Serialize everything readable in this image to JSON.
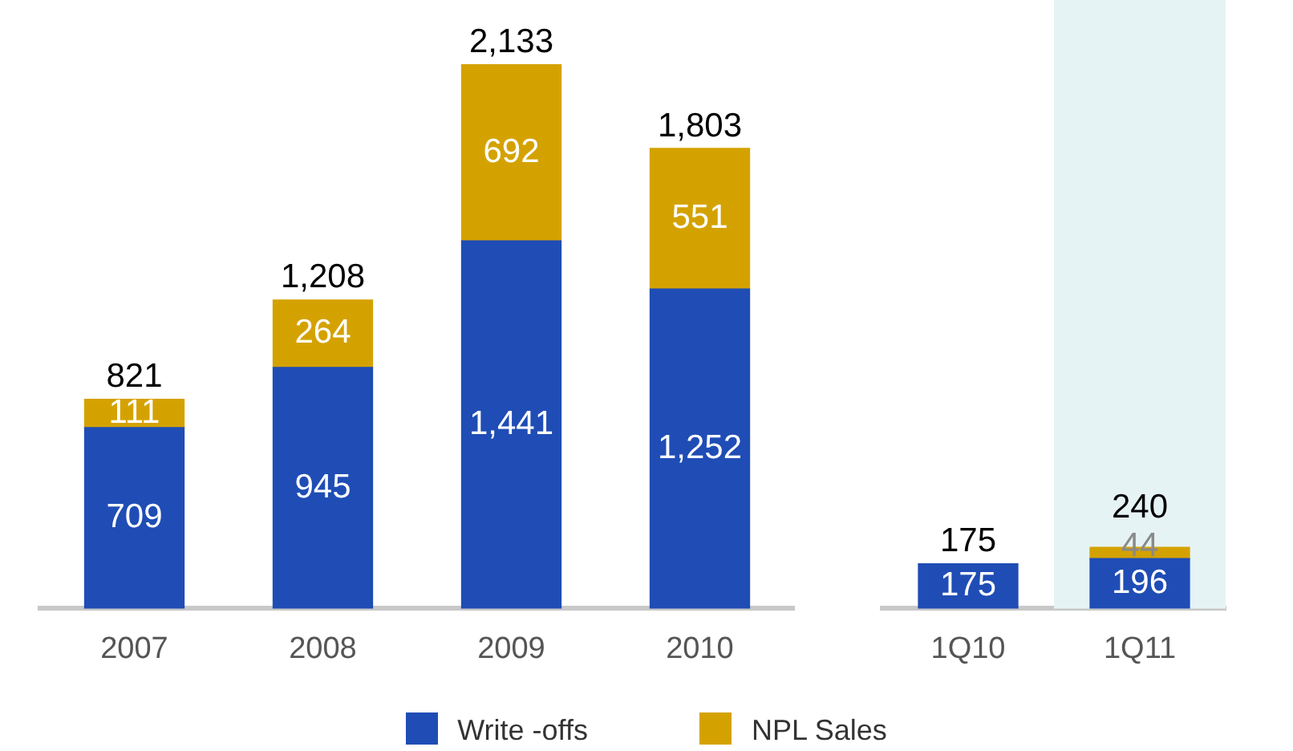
{
  "chart_data": [
    {
      "type": "bar",
      "stacked": true,
      "categories": [
        "2007",
        "2008",
        "2009",
        "2010"
      ],
      "series": [
        {
          "name": "Write -offs",
          "color": "#1f4db5",
          "values": [
            709,
            945,
            1441,
            1252
          ],
          "value_labels": [
            "709",
            "945",
            "1,441",
            "1,252"
          ]
        },
        {
          "name": "NPL Sales",
          "color": "#d4a200",
          "values": [
            111,
            264,
            692,
            551
          ],
          "value_labels": [
            "111",
            "264",
            "692",
            "551"
          ]
        }
      ],
      "totals": [
        "821",
        "1,208",
        "2,133",
        "1,803"
      ],
      "legend": "bottom",
      "grid": false
    },
    {
      "type": "bar",
      "stacked": true,
      "categories": [
        "1Q10",
        "1Q11"
      ],
      "series": [
        {
          "color": "#1f4db5",
          "values": [
            175,
            196
          ],
          "value_labels": [
            "175",
            "196"
          ]
        },
        {
          "color": "#d4a200",
          "values": [
            null,
            44
          ],
          "value_labels": [
            null,
            "44"
          ]
        }
      ],
      "totals": [
        "175",
        "240"
      ],
      "grid": false,
      "bands": [
        {
          "axis": "x",
          "from": "1Q11",
          "to": "1Q11",
          "color": "#e6f3f5"
        }
      ]
    }
  ]
}
